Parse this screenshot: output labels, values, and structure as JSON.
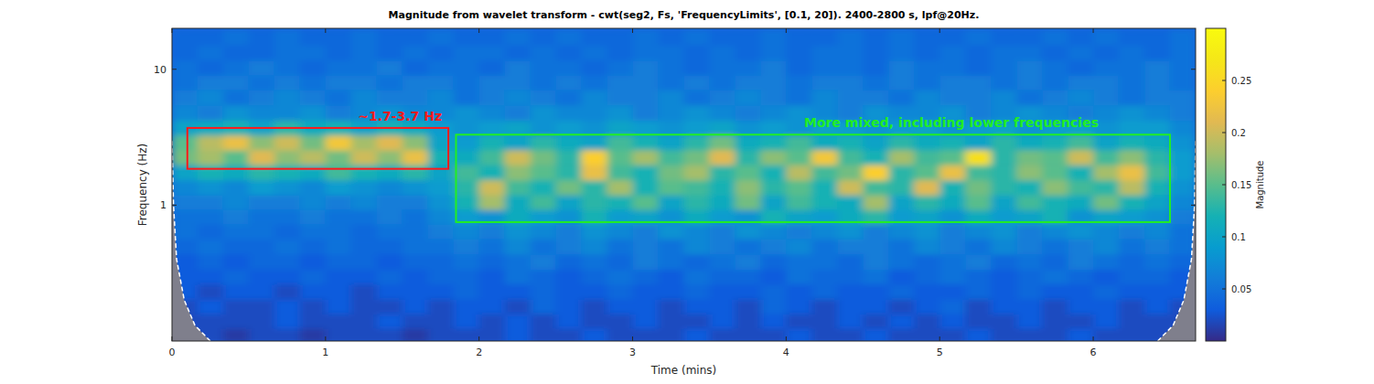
{
  "chart_data": {
    "type": "heatmap",
    "title": "Magnitude from wavelet transform - cwt(seg2, Fs, 'FrequencyLimits', [0.1, 20]). 2400-2800 s, lpf@20Hz.",
    "x_label": "Time (mins)",
    "y_label": "Frequency (Hz)",
    "xlim": [
      0,
      6.667
    ],
    "xticks": [
      0,
      1,
      2,
      3,
      4,
      5,
      6
    ],
    "ylim": [
      0.1,
      20
    ],
    "yticks": [
      1,
      10
    ],
    "log": "y",
    "x": [
      0.083,
      0.25,
      0.417,
      0.583,
      0.75,
      0.917,
      1.083,
      1.25,
      1.417,
      1.583,
      1.75,
      1.917,
      2.083,
      2.25,
      2.417,
      2.583,
      2.75,
      2.917,
      3.083,
      3.25,
      3.417,
      3.583,
      3.75,
      3.917,
      4.083,
      4.25,
      4.417,
      4.583,
      4.75,
      4.917,
      5.083,
      5.25,
      5.417,
      5.583,
      5.75,
      5.917,
      6.083,
      6.25,
      6.417,
      6.583
    ],
    "y": [
      0.11,
      0.14,
      0.18,
      0.23,
      0.3,
      0.38,
      0.5,
      0.64,
      0.82,
      1.05,
      1.35,
      1.75,
      2.25,
      2.9,
      3.7,
      4.8,
      6.2,
      8,
      10.3,
      13.3,
      17.2
    ],
    "cells": [
      [
        0.02,
        0.02,
        0.01,
        0.02,
        0.02,
        0.01,
        0.02,
        0.02,
        0.02,
        0.01,
        0.02,
        0.02,
        0.02,
        0.03,
        0.02,
        0.02,
        0.03,
        0.02,
        0.02,
        0.02,
        0.03,
        0.02,
        0.02,
        0.02,
        0.03,
        0.02,
        0.02,
        0.03,
        0.02,
        0.02,
        0.02,
        0.03,
        0.02,
        0.02,
        0.02,
        0.03,
        0.02,
        0.02,
        0.02,
        0.02
      ],
      [
        0.02,
        0.02,
        0.02,
        0.02,
        0.03,
        0.02,
        0.02,
        0.02,
        0.03,
        0.02,
        0.02,
        0.03,
        0.02,
        0.03,
        0.02,
        0.03,
        0.02,
        0.02,
        0.03,
        0.02,
        0.02,
        0.03,
        0.02,
        0.03,
        0.02,
        0.02,
        0.03,
        0.02,
        0.03,
        0.02,
        0.03,
        0.02,
        0.02,
        0.03,
        0.02,
        0.02,
        0.03,
        0.02,
        0.02,
        0.02
      ],
      [
        0.02,
        0.03,
        0.02,
        0.02,
        0.03,
        0.02,
        0.03,
        0.02,
        0.02,
        0.03,
        0.02,
        0.03,
        0.03,
        0.02,
        0.04,
        0.03,
        0.02,
        0.03,
        0.03,
        0.02,
        0.03,
        0.03,
        0.02,
        0.04,
        0.03,
        0.02,
        0.03,
        0.03,
        0.02,
        0.03,
        0.04,
        0.02,
        0.03,
        0.03,
        0.02,
        0.03,
        0.03,
        0.02,
        0.03,
        0.02
      ],
      [
        0.03,
        0.02,
        0.03,
        0.03,
        0.02,
        0.03,
        0.03,
        0.02,
        0.03,
        0.03,
        0.03,
        0.04,
        0.03,
        0.03,
        0.04,
        0.03,
        0.03,
        0.04,
        0.03,
        0.03,
        0.04,
        0.03,
        0.03,
        0.04,
        0.03,
        0.04,
        0.03,
        0.03,
        0.04,
        0.03,
        0.03,
        0.04,
        0.03,
        0.04,
        0.03,
        0.03,
        0.04,
        0.03,
        0.03,
        0.03
      ],
      [
        0.03,
        0.03,
        0.04,
        0.03,
        0.03,
        0.04,
        0.03,
        0.03,
        0.04,
        0.03,
        0.04,
        0.04,
        0.03,
        0.05,
        0.04,
        0.03,
        0.04,
        0.05,
        0.04,
        0.03,
        0.05,
        0.04,
        0.04,
        0.03,
        0.05,
        0.04,
        0.04,
        0.05,
        0.03,
        0.04,
        0.05,
        0.04,
        0.03,
        0.04,
        0.05,
        0.04,
        0.03,
        0.04,
        0.04,
        0.03
      ],
      [
        0.03,
        0.04,
        0.03,
        0.04,
        0.04,
        0.03,
        0.04,
        0.04,
        0.03,
        0.04,
        0.04,
        0.05,
        0.04,
        0.05,
        0.06,
        0.04,
        0.05,
        0.04,
        0.06,
        0.05,
        0.04,
        0.05,
        0.06,
        0.04,
        0.05,
        0.05,
        0.04,
        0.06,
        0.05,
        0.04,
        0.05,
        0.06,
        0.04,
        0.05,
        0.04,
        0.06,
        0.05,
        0.04,
        0.05,
        0.04
      ],
      [
        0.04,
        0.05,
        0.04,
        0.04,
        0.05,
        0.04,
        0.05,
        0.04,
        0.04,
        0.05,
        0.05,
        0.06,
        0.05,
        0.07,
        0.05,
        0.06,
        0.07,
        0.05,
        0.06,
        0.05,
        0.07,
        0.06,
        0.05,
        0.06,
        0.07,
        0.05,
        0.06,
        0.06,
        0.05,
        0.07,
        0.06,
        0.05,
        0.07,
        0.06,
        0.05,
        0.06,
        0.07,
        0.05,
        0.06,
        0.05
      ],
      [
        0.05,
        0.04,
        0.05,
        0.05,
        0.04,
        0.05,
        0.05,
        0.04,
        0.05,
        0.05,
        0.06,
        0.07,
        0.06,
        0.08,
        0.07,
        0.06,
        0.08,
        0.07,
        0.06,
        0.08,
        0.07,
        0.06,
        0.08,
        0.07,
        0.06,
        0.07,
        0.08,
        0.06,
        0.07,
        0.08,
        0.06,
        0.07,
        0.08,
        0.06,
        0.07,
        0.08,
        0.07,
        0.06,
        0.07,
        0.05
      ],
      [
        0.05,
        0.05,
        0.06,
        0.05,
        0.05,
        0.06,
        0.05,
        0.05,
        0.06,
        0.05,
        0.07,
        0.09,
        0.08,
        0.11,
        0.09,
        0.08,
        0.12,
        0.09,
        0.1,
        0.08,
        0.11,
        0.09,
        0.08,
        0.12,
        0.1,
        0.09,
        0.11,
        0.13,
        0.09,
        0.1,
        0.08,
        0.11,
        0.09,
        0.1,
        0.12,
        0.08,
        0.1,
        0.09,
        0.08,
        0.06
      ],
      [
        0.06,
        0.06,
        0.07,
        0.06,
        0.06,
        0.07,
        0.06,
        0.07,
        0.06,
        0.06,
        0.08,
        0.12,
        0.18,
        0.11,
        0.14,
        0.1,
        0.13,
        0.12,
        0.15,
        0.1,
        0.13,
        0.11,
        0.16,
        0.1,
        0.14,
        0.12,
        0.11,
        0.18,
        0.1,
        0.13,
        0.11,
        0.15,
        0.1,
        0.14,
        0.12,
        0.11,
        0.16,
        0.12,
        0.1,
        0.07
      ],
      [
        0.07,
        0.08,
        0.07,
        0.09,
        0.08,
        0.07,
        0.09,
        0.08,
        0.07,
        0.08,
        0.09,
        0.13,
        0.2,
        0.14,
        0.12,
        0.16,
        0.13,
        0.18,
        0.12,
        0.15,
        0.14,
        0.12,
        0.17,
        0.13,
        0.15,
        0.12,
        0.2,
        0.14,
        0.13,
        0.21,
        0.12,
        0.16,
        0.13,
        0.12,
        0.17,
        0.14,
        0.13,
        0.19,
        0.12,
        0.08
      ],
      [
        0.1,
        0.12,
        0.11,
        0.13,
        0.12,
        0.11,
        0.14,
        0.12,
        0.11,
        0.13,
        0.1,
        0.14,
        0.12,
        0.17,
        0.15,
        0.13,
        0.22,
        0.14,
        0.12,
        0.16,
        0.18,
        0.13,
        0.15,
        0.12,
        0.19,
        0.14,
        0.16,
        0.24,
        0.13,
        0.15,
        0.22,
        0.14,
        0.13,
        0.17,
        0.15,
        0.12,
        0.18,
        0.22,
        0.14,
        0.09
      ],
      [
        0.16,
        0.18,
        0.15,
        0.21,
        0.17,
        0.19,
        0.16,
        0.2,
        0.17,
        0.22,
        0.12,
        0.11,
        0.14,
        0.2,
        0.16,
        0.13,
        0.24,
        0.15,
        0.18,
        0.14,
        0.16,
        0.21,
        0.13,
        0.17,
        0.15,
        0.23,
        0.14,
        0.12,
        0.18,
        0.14,
        0.15,
        0.26,
        0.13,
        0.16,
        0.15,
        0.2,
        0.14,
        0.17,
        0.13,
        0.09
      ],
      [
        0.15,
        0.19,
        0.22,
        0.17,
        0.2,
        0.16,
        0.23,
        0.18,
        0.21,
        0.17,
        0.1,
        0.09,
        0.12,
        0.1,
        0.13,
        0.11,
        0.1,
        0.14,
        0.12,
        0.1,
        0.13,
        0.16,
        0.11,
        0.12,
        0.14,
        0.11,
        0.12,
        0.1,
        0.13,
        0.11,
        0.12,
        0.1,
        0.13,
        0.11,
        0.12,
        0.14,
        0.1,
        0.12,
        0.11,
        0.08
      ],
      [
        0.1,
        0.11,
        0.12,
        0.1,
        0.13,
        0.11,
        0.12,
        0.1,
        0.12,
        0.11,
        0.09,
        0.08,
        0.09,
        0.1,
        0.08,
        0.09,
        0.08,
        0.1,
        0.09,
        0.08,
        0.09,
        0.1,
        0.08,
        0.09,
        0.08,
        0.1,
        0.09,
        0.08,
        0.09,
        0.1,
        0.08,
        0.09,
        0.1,
        0.08,
        0.09,
        0.1,
        0.08,
        0.09,
        0.09,
        0.07
      ],
      [
        0.07,
        0.06,
        0.08,
        0.07,
        0.07,
        0.08,
        0.06,
        0.07,
        0.08,
        0.07,
        0.07,
        0.08,
        0.07,
        0.06,
        0.08,
        0.07,
        0.07,
        0.08,
        0.06,
        0.07,
        0.08,
        0.07,
        0.06,
        0.07,
        0.08,
        0.07,
        0.06,
        0.08,
        0.07,
        0.07,
        0.08,
        0.06,
        0.07,
        0.08,
        0.07,
        0.06,
        0.07,
        0.08,
        0.07,
        0.06
      ],
      [
        0.06,
        0.07,
        0.05,
        0.06,
        0.07,
        0.06,
        0.05,
        0.07,
        0.06,
        0.06,
        0.07,
        0.05,
        0.06,
        0.07,
        0.06,
        0.05,
        0.07,
        0.06,
        0.06,
        0.07,
        0.05,
        0.06,
        0.07,
        0.06,
        0.05,
        0.07,
        0.06,
        0.06,
        0.05,
        0.07,
        0.06,
        0.06,
        0.07,
        0.05,
        0.06,
        0.07,
        0.06,
        0.05,
        0.06,
        0.06
      ],
      [
        0.05,
        0.06,
        0.06,
        0.05,
        0.06,
        0.05,
        0.06,
        0.06,
        0.05,
        0.06,
        0.06,
        0.05,
        0.06,
        0.06,
        0.05,
        0.06,
        0.05,
        0.06,
        0.06,
        0.05,
        0.06,
        0.05,
        0.06,
        0.06,
        0.05,
        0.06,
        0.06,
        0.05,
        0.06,
        0.05,
        0.06,
        0.06,
        0.05,
        0.06,
        0.05,
        0.06,
        0.06,
        0.05,
        0.06,
        0.05
      ],
      [
        0.05,
        0.04,
        0.05,
        0.06,
        0.05,
        0.04,
        0.05,
        0.05,
        0.06,
        0.04,
        0.05,
        0.05,
        0.04,
        0.06,
        0.05,
        0.05,
        0.04,
        0.05,
        0.06,
        0.05,
        0.04,
        0.05,
        0.05,
        0.06,
        0.04,
        0.05,
        0.05,
        0.04,
        0.06,
        0.05,
        0.05,
        0.04,
        0.05,
        0.06,
        0.05,
        0.04,
        0.05,
        0.05,
        0.06,
        0.05
      ],
      [
        0.04,
        0.05,
        0.04,
        0.04,
        0.05,
        0.05,
        0.04,
        0.05,
        0.04,
        0.05,
        0.04,
        0.05,
        0.05,
        0.04,
        0.05,
        0.04,
        0.05,
        0.04,
        0.05,
        0.05,
        0.04,
        0.05,
        0.04,
        0.05,
        0.04,
        0.05,
        0.05,
        0.04,
        0.05,
        0.04,
        0.05,
        0.04,
        0.05,
        0.05,
        0.04,
        0.05,
        0.04,
        0.05,
        0.04,
        0.05
      ],
      [
        0.04,
        0.04,
        0.05,
        0.04,
        0.05,
        0.04,
        0.04,
        0.05,
        0.04,
        0.04,
        0.05,
        0.04,
        0.04,
        0.05,
        0.04,
        0.05,
        0.04,
        0.04,
        0.05,
        0.04,
        0.05,
        0.04,
        0.04,
        0.05,
        0.04,
        0.04,
        0.05,
        0.04,
        0.05,
        0.04,
        0.04,
        0.05,
        0.04,
        0.04,
        0.05,
        0.04,
        0.05,
        0.04,
        0.04,
        0.05
      ]
    ],
    "colorbar": {
      "label": "Magnitude",
      "lim": [
        0,
        0.3
      ],
      "ticks": [
        0.05,
        0.1,
        0.15,
        0.2,
        0.25
      ]
    },
    "cone_of_influence": [
      {
        "x": [
          0.25,
          0.15,
          0.08,
          0.03,
          0.01,
          0
        ],
        "y": [
          0.1,
          0.13,
          0.2,
          0.4,
          1,
          3
        ]
      },
      {
        "x": [
          6.42,
          6.52,
          6.59,
          6.64,
          6.66,
          6.667
        ],
        "y": [
          0.1,
          0.13,
          0.2,
          0.4,
          1,
          3
        ]
      }
    ],
    "annotations": [
      {
        "text": "~1.7-3.7 Hz",
        "color": "#ff1a1a",
        "x": [
          0.1,
          1.8
        ],
        "y": [
          1.85,
          3.7
        ]
      },
      {
        "text": "More mixed, including lower frequencies",
        "color": "#22ee22",
        "x": [
          1.85,
          6.5
        ],
        "y": [
          0.75,
          3.3
        ]
      }
    ]
  }
}
